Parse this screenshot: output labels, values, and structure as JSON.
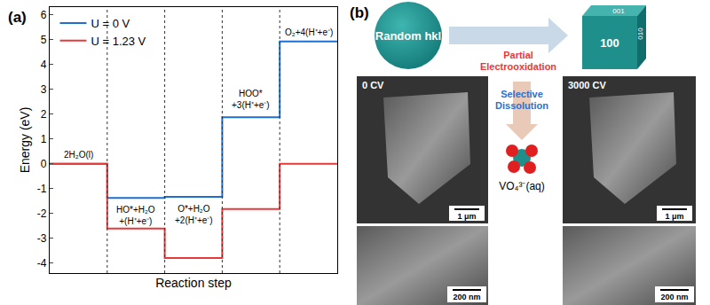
{
  "chart_data": {
    "type": "step",
    "panel_label": "(a)",
    "x_label": "Reaction step",
    "y_label": "Energy (eV)",
    "categories": [
      "2H₂O(l)",
      "HO*+H₂O\n+(H⁺+e⁻)",
      "O*+H₂O\n+2(H⁺+e⁻)",
      "HOO*\n+3(H⁺+e⁻)",
      "O₂+4(H⁺+e⁻)"
    ],
    "series": [
      {
        "name": "U = 0 V",
        "color": "#1f6fd1",
        "values": [
          0,
          -1.38,
          -1.33,
          1.87,
          4.92
        ]
      },
      {
        "name": "U = 1.23 V",
        "color": "#e8393a",
        "values": [
          0,
          -2.61,
          -3.79,
          -1.82,
          0
        ]
      }
    ],
    "ylim": [
      -4.4,
      6.3
    ],
    "yticks": [
      -4,
      -3,
      -2,
      -1,
      0,
      1,
      2,
      3,
      4,
      5,
      6
    ],
    "tick_labels": "y",
    "legend": "upper left",
    "grid": false
  },
  "diagram": {
    "panel_label": "(b)",
    "start": "Random hkl",
    "end_faces": [
      "100",
      "001",
      "010"
    ],
    "steps": [
      "Partial\nElectrooxidation",
      "Selective\nDissolution"
    ],
    "product": "VO₄³⁻(aq)",
    "images": [
      {
        "label": "0 CV",
        "scale_bars": [
          "1 μm",
          "200 nm"
        ]
      },
      {
        "label": "3000 CV",
        "scale_bars": [
          "1 μm",
          "200 nm"
        ]
      }
    ]
  }
}
